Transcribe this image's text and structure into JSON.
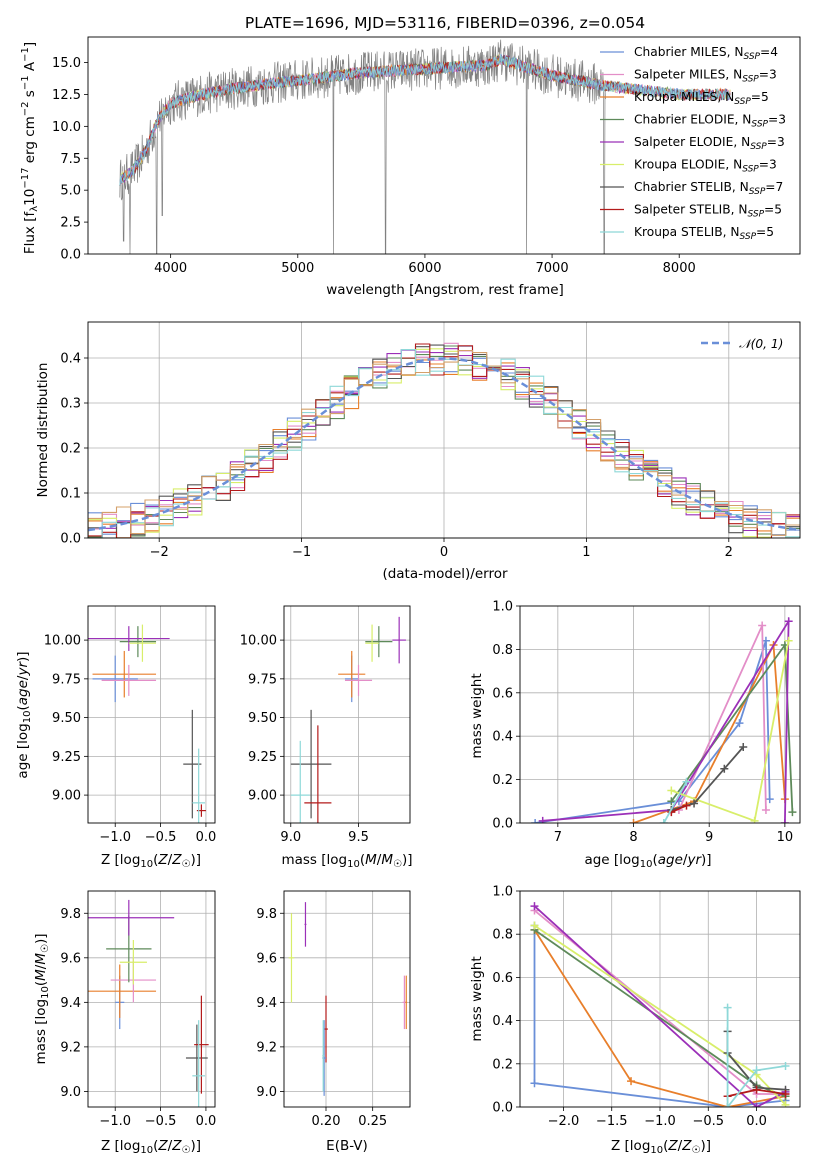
{
  "colors": {
    "c0": "#6a8fd8",
    "c1": "#e87f2b",
    "c2": "#d4a06a",
    "c3": "#5e8a5a",
    "c4": "#9b30b8",
    "c5": "#d8ee6a",
    "c6": "#555555",
    "c7": "#b31b1b",
    "c8": "#8ed8d8",
    "c9": "#e38ec8",
    "data": "#808080"
  },
  "chart_data": [
    {
      "type": "line",
      "title": "PLATE=1696, MJD=53116, FIBERID=0396, z=0.054",
      "xlabel": "wavelength [Angstrom, rest frame]",
      "ylabel": "Flux [f_λ 10^-17 erg cm^-2 s^-1 A^-1]",
      "xlim": [
        3350,
        8950
      ],
      "ylim": [
        0,
        17
      ],
      "xticks": [
        "4000",
        "5000",
        "6000",
        "7000",
        "8000"
      ],
      "yticks": [
        "0.0",
        "2.5",
        "5.0",
        "7.5",
        "10.0",
        "12.5",
        "15.0"
      ],
      "legend": [
        {
          "name": "Chabrier MILES",
          "nssp": "4",
          "color": "c0"
        },
        {
          "name": "Salpeter MILES",
          "nssp": "3",
          "color": "c9"
        },
        {
          "name": "Kroupa MILES",
          "nssp": "5",
          "color": "c1"
        },
        {
          "name": "Chabrier ELODIE",
          "nssp": "3",
          "color": "c3"
        },
        {
          "name": "Salpeter ELODIE",
          "nssp": "3",
          "color": "c4"
        },
        {
          "name": "Kroupa ELODIE",
          "nssp": "3",
          "color": "c5"
        },
        {
          "name": "Chabrier STELIB",
          "nssp": "7",
          "color": "c6"
        },
        {
          "name": "Salpeter STELIB",
          "nssp": "5",
          "color": "c7"
        },
        {
          "name": "Kroupa STELIB",
          "nssp": "5",
          "color": "c8"
        }
      ],
      "nssp_prefix": "N",
      "nssp_sub": "SSP",
      "continuum": [
        [
          3600,
          5.8
        ],
        [
          3700,
          6.5
        ],
        [
          3800,
          8.0
        ],
        [
          3900,
          10.5
        ],
        [
          4000,
          11.8
        ],
        [
          4200,
          12.4
        ],
        [
          4500,
          13.0
        ],
        [
          5000,
          13.6
        ],
        [
          5500,
          14.2
        ],
        [
          6000,
          14.5
        ],
        [
          6500,
          14.8
        ],
        [
          6600,
          15.3
        ],
        [
          6800,
          14.6
        ],
        [
          7000,
          14.0
        ],
        [
          7400,
          13.2
        ],
        [
          8000,
          12.5
        ],
        [
          8400,
          12.5
        ]
      ],
      "model_end": 8400,
      "data_end": 7420,
      "dips": [
        {
          "x": 3630,
          "y": 1.0
        },
        {
          "x": 3680,
          "y": 0.0
        },
        {
          "x": 3890,
          "y": 0.0
        },
        {
          "x": 3935,
          "y": 3.0
        },
        {
          "x": 5280,
          "y": 0.0
        },
        {
          "x": 5690,
          "y": 0.0
        },
        {
          "x": 6800,
          "y": 0.0
        },
        {
          "x": 7410,
          "y": 0.0
        }
      ]
    },
    {
      "type": "bar",
      "xlabel": "(data-model)/error",
      "ylabel": "Normed distribution",
      "xlim": [
        -2.5,
        2.5
      ],
      "ylim": [
        0,
        0.48
      ],
      "xticks": [
        "−2",
        "−1",
        "0",
        "1",
        "2"
      ],
      "yticks": [
        "0.0",
        "0.1",
        "0.2",
        "0.3",
        "0.4"
      ],
      "legend_label": "N(0,1)",
      "bin_width": 0.1,
      "curve": "standard normal density"
    },
    {
      "type": "scatter",
      "xlabel": "Z [log10(Z/Z☉)]",
      "ylabel": "age  [log10(age/yr)]",
      "xlim": [
        -1.3,
        0.1
      ],
      "ylim": [
        8.82,
        10.22
      ],
      "xticks": [
        "−1.0",
        "−0.5",
        "0.0"
      ],
      "yticks": [
        "9.00",
        "9.25",
        "9.50",
        "9.75",
        "10.00"
      ],
      "points": [
        {
          "color": "c0",
          "x": -1.0,
          "xerr": 0.25,
          "y": 9.75,
          "yerr": 0.15
        },
        {
          "color": "c1",
          "x": -0.9,
          "xerr": 0.35,
          "y": 9.78,
          "yerr": 0.15
        },
        {
          "color": "c9",
          "x": -0.85,
          "xerr": 0.3,
          "y": 9.74,
          "yerr": 0.1
        },
        {
          "color": "c3",
          "x": -0.75,
          "xerr": 0.2,
          "y": 9.99,
          "yerr": 0.1
        },
        {
          "color": "c4",
          "x": -0.85,
          "xerr": 0.45,
          "y": 10.01,
          "yerr": 0.08
        },
        {
          "color": "c5",
          "x": -0.7,
          "xerr": 0.15,
          "y": 9.98,
          "yerr": 0.12
        },
        {
          "color": "c6",
          "x": -0.15,
          "xerr": 0.1,
          "y": 9.2,
          "yerr": 0.35
        },
        {
          "color": "c7",
          "x": -0.05,
          "xerr": 0.05,
          "y": 8.9,
          "yerr": 0.04
        },
        {
          "color": "c8",
          "x": -0.08,
          "xerr": 0.07,
          "y": 8.95,
          "yerr": 0.35
        }
      ]
    },
    {
      "type": "scatter",
      "xlabel": "mass [log10(M/M☉)]",
      "xlim": [
        8.95,
        9.88
      ],
      "ylim": [
        8.82,
        10.22
      ],
      "xticks": [
        "9.0",
        "9.5"
      ],
      "yticks": [
        "9.00",
        "9.25",
        "9.50",
        "9.75",
        "10.00"
      ],
      "points": [
        {
          "color": "c0",
          "x": 9.45,
          "xerr": 0.05,
          "y": 9.75,
          "yerr": 0.15
        },
        {
          "color": "c1",
          "x": 9.45,
          "xerr": 0.1,
          "y": 9.78,
          "yerr": 0.15
        },
        {
          "color": "c9",
          "x": 9.5,
          "xerr": 0.1,
          "y": 9.74,
          "yerr": 0.1
        },
        {
          "color": "c3",
          "x": 9.65,
          "xerr": 0.1,
          "y": 9.99,
          "yerr": 0.1
        },
        {
          "color": "c4",
          "x": 9.8,
          "xerr": 0.05,
          "y": 10.0,
          "yerr": 0.15
        },
        {
          "color": "c5",
          "x": 9.6,
          "xerr": 0.05,
          "y": 9.98,
          "yerr": 0.12
        },
        {
          "color": "c6",
          "x": 9.15,
          "xerr": 0.15,
          "y": 9.2,
          "yerr": 0.35
        },
        {
          "color": "c7",
          "x": 9.2,
          "xerr": 0.1,
          "y": 8.95,
          "yerr": 0.5
        },
        {
          "color": "c8",
          "x": 9.07,
          "xerr": 0.07,
          "y": 9.0,
          "yerr": 0.35
        }
      ]
    },
    {
      "type": "line",
      "xlabel": "age  [log10(age/yr)]",
      "ylabel": "mass weight",
      "xlim": [
        6.5,
        10.2
      ],
      "ylim": [
        0,
        1
      ],
      "xticks": [
        "7",
        "8",
        "9",
        "10"
      ],
      "yticks": [
        "0.0",
        "0.2",
        "0.4",
        "0.6",
        "0.8",
        "1.0"
      ],
      "series": [
        {
          "color": "c0",
          "points": [
            [
              6.7,
              0.0
            ],
            [
              8.6,
              0.1
            ],
            [
              9.4,
              0.46
            ],
            [
              9.75,
              0.84
            ],
            [
              9.8,
              0.11
            ]
          ]
        },
        {
          "color": "c1",
          "points": [
            [
              8.0,
              0.0
            ],
            [
              8.8,
              0.1
            ],
            [
              9.85,
              0.82
            ],
            [
              10.0,
              0.11
            ]
          ]
        },
        {
          "color": "c9",
          "points": [
            [
              8.6,
              0.06
            ],
            [
              9.7,
              0.91
            ],
            [
              9.75,
              0.06
            ]
          ]
        },
        {
          "color": "c3",
          "points": [
            [
              8.5,
              0.1
            ],
            [
              10.0,
              0.82
            ],
            [
              10.1,
              0.05
            ]
          ]
        },
        {
          "color": "c4",
          "points": [
            [
              6.8,
              0.01
            ],
            [
              8.5,
              0.06
            ],
            [
              10.05,
              0.93
            ],
            [
              10.0,
              0.0
            ]
          ]
        },
        {
          "color": "c5",
          "points": [
            [
              8.5,
              0.15
            ],
            [
              9.6,
              0.01
            ],
            [
              10.05,
              0.84
            ]
          ]
        },
        {
          "color": "c6",
          "points": [
            [
              8.5,
              0.06
            ],
            [
              8.8,
              0.09
            ],
            [
              9.2,
              0.25
            ],
            [
              9.45,
              0.35
            ]
          ]
        },
        {
          "color": "c7",
          "points": [
            [
              8.5,
              0.05
            ],
            [
              8.7,
              0.08
            ]
          ]
        },
        {
          "color": "c8",
          "points": [
            [
              8.4,
              0.0
            ],
            [
              8.7,
              0.19
            ]
          ]
        }
      ]
    },
    {
      "type": "scatter",
      "xlabel": "Z [log10(Z/Z☉)]",
      "ylabel": "mass [log10(M/M☉)]",
      "xlim": [
        -1.3,
        0.1
      ],
      "ylim": [
        8.93,
        9.9
      ],
      "xticks": [
        "−1.0",
        "−0.5",
        "0.0"
      ],
      "yticks": [
        "9.0",
        "9.2",
        "9.4",
        "9.6",
        "9.8"
      ],
      "points": [
        {
          "color": "c0",
          "x": -0.95,
          "xerr": 0.05,
          "y": 9.4,
          "yerr": 0.12
        },
        {
          "color": "c1",
          "x": -0.95,
          "xerr": 0.4,
          "y": 9.45,
          "yerr": 0.12
        },
        {
          "color": "c9",
          "x": -0.8,
          "xerr": 0.25,
          "y": 9.5,
          "yerr": 0.1
        },
        {
          "color": "c3",
          "x": -0.85,
          "xerr": 0.25,
          "y": 9.64,
          "yerr": 0.15
        },
        {
          "color": "c4",
          "x": -0.85,
          "xerr": 0.5,
          "y": 9.78,
          "yerr": 0.08
        },
        {
          "color": "c5",
          "x": -0.8,
          "xerr": 0.15,
          "y": 9.58,
          "yerr": 0.1
        },
        {
          "color": "c6",
          "x": -0.1,
          "xerr": 0.12,
          "y": 9.15,
          "yerr": 0.15
        },
        {
          "color": "c7",
          "x": -0.05,
          "xerr": 0.08,
          "y": 9.21,
          "yerr": 0.22
        },
        {
          "color": "c8",
          "x": -0.08,
          "xerr": 0.07,
          "y": 9.07,
          "yerr": 0.25
        }
      ]
    },
    {
      "type": "scatter",
      "xlabel": "E(B-V)",
      "xlim": [
        0.155,
        0.29
      ],
      "ylim": [
        8.93,
        9.9
      ],
      "xticks": [
        "0.20",
        "0.25"
      ],
      "yticks": [
        "9.0",
        "9.2",
        "9.4",
        "9.6",
        "9.8"
      ],
      "points": [
        {
          "color": "c5",
          "x": 0.163,
          "xerr": 0.003,
          "y": 9.6,
          "yerr": 0.2
        },
        {
          "color": "c4",
          "x": 0.178,
          "xerr": 0.001,
          "y": 9.75,
          "yerr": 0.1
        },
        {
          "color": "c7",
          "x": 0.2,
          "xerr": 0.002,
          "y": 9.28,
          "yerr": 0.15
        },
        {
          "color": "c0",
          "x": 0.198,
          "xerr": 0.002,
          "y": 9.15,
          "yerr": 0.17
        },
        {
          "color": "c8",
          "x": 0.197,
          "xerr": 0.001,
          "y": 9.16,
          "yerr": 0.16
        },
        {
          "color": "c9",
          "x": 0.284,
          "xerr": 0.002,
          "y": 9.4,
          "yerr": 0.12
        },
        {
          "color": "c1",
          "x": 0.286,
          "xerr": 0.001,
          "y": 9.4,
          "yerr": 0.12
        }
      ]
    },
    {
      "type": "line",
      "xlabel": "Z [log10(Z/Z☉)]",
      "ylabel": "mass weight",
      "xlim": [
        -2.45,
        0.45
      ],
      "ylim": [
        0,
        1
      ],
      "xticks": [
        "−2.0",
        "−1.5",
        "−1.0",
        "−0.5",
        "0.0"
      ],
      "yticks": [
        "0.0",
        "0.2",
        "0.4",
        "0.6",
        "0.8",
        "1.0"
      ],
      "series": [
        {
          "color": "c0",
          "points": [
            [
              -2.3,
              0.84
            ],
            [
              -2.3,
              0.11
            ],
            [
              -0.3,
              0.0
            ],
            [
              0.3,
              0.03
            ]
          ]
        },
        {
          "color": "c1",
          "points": [
            [
              -2.3,
              0.82
            ],
            [
              -1.3,
              0.12
            ],
            [
              -0.3,
              0.0
            ],
            [
              0.3,
              0.05
            ]
          ]
        },
        {
          "color": "c9",
          "points": [
            [
              -2.3,
              0.91
            ],
            [
              0.0,
              0.06
            ],
            [
              0.3,
              0.06
            ]
          ]
        },
        {
          "color": "c3",
          "points": [
            [
              -2.3,
              0.82
            ],
            [
              0.0,
              0.1
            ],
            [
              0.3,
              0.05
            ]
          ]
        },
        {
          "color": "c4",
          "points": [
            [
              -2.3,
              0.93
            ],
            [
              0.0,
              0.0
            ],
            [
              0.3,
              0.07
            ]
          ]
        },
        {
          "color": "c5",
          "points": [
            [
              -2.3,
              0.84
            ],
            [
              0.0,
              0.15
            ],
            [
              0.3,
              0.01
            ]
          ]
        },
        {
          "color": "c6",
          "points": [
            [
              -0.3,
              0.35
            ],
            [
              -0.3,
              0.25
            ],
            [
              0.0,
              0.09
            ],
            [
              0.3,
              0.08
            ]
          ]
        },
        {
          "color": "c7",
          "points": [
            [
              -0.3,
              0.05
            ],
            [
              0.0,
              0.08
            ],
            [
              0.3,
              0.06
            ]
          ]
        },
        {
          "color": "c8",
          "points": [
            [
              -0.3,
              0.46
            ],
            [
              -0.3,
              0.0
            ],
            [
              0.0,
              0.17
            ],
            [
              0.3,
              0.19
            ]
          ]
        }
      ]
    }
  ]
}
